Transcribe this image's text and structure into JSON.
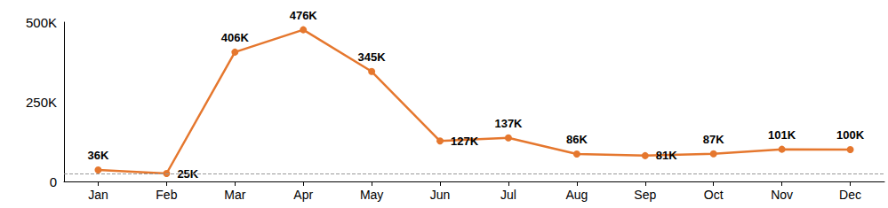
{
  "chart_data": {
    "type": "line",
    "categories": [
      "Jan",
      "Feb",
      "Mar",
      "Apr",
      "May",
      "Jun",
      "Jul",
      "Aug",
      "Sep",
      "Oct",
      "Nov",
      "Dec"
    ],
    "values": [
      36000,
      25000,
      406000,
      476000,
      345000,
      127000,
      137000,
      86000,
      81000,
      87000,
      101000,
      100000
    ],
    "value_labels": [
      "36K",
      "25K",
      "406K",
      "476K",
      "345K",
      "127K",
      "137K",
      "86K",
      "81K",
      "87K",
      "101K",
      "100K"
    ],
    "color": "#e5772e",
    "marker": "circle",
    "data_labels": true,
    "reference_line": 25000,
    "ylim": [
      0,
      500000
    ],
    "yticks": [
      0,
      {
        "value": 250000,
        "label": "250K"
      },
      {
        "value": 500000,
        "label": "500K"
      }
    ],
    "grid": false
  }
}
